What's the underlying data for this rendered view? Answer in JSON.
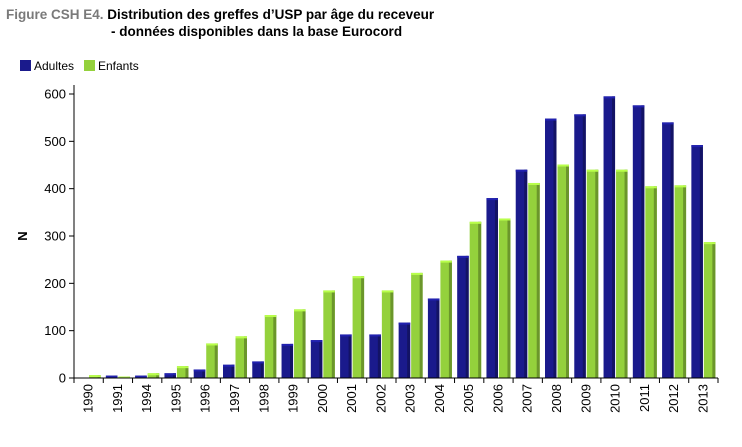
{
  "title": {
    "prefix": "Figure CSH E4.",
    "main": "Distribution des greffes d’USP par âge du receveur",
    "line2": "- données disponibles dans la base Eurocord"
  },
  "colors": {
    "adultes": "#1a1a8c",
    "enfants": "#94d13c",
    "axis": "#000000"
  },
  "chart_data": {
    "type": "bar",
    "ylabel": "N",
    "ylim": [
      0,
      620
    ],
    "yticks": [
      0,
      100,
      200,
      300,
      400,
      500,
      600
    ],
    "legend_position": "top-left",
    "categories": [
      "1990",
      "1991",
      "1994",
      "1995",
      "1996",
      "1997",
      "1998",
      "1999",
      "2000",
      "2001",
      "2002",
      "2003",
      "2004",
      "2005",
      "2006",
      "2007",
      "2008",
      "2009",
      "2010",
      "2011",
      "2012",
      "2013"
    ],
    "series": [
      {
        "name": "Adultes",
        "values": [
          0,
          5,
          5,
          10,
          18,
          28,
          35,
          72,
          80,
          92,
          92,
          117,
          168,
          258,
          380,
          440,
          548,
          557,
          595,
          576,
          540,
          492
        ]
      },
      {
        "name": "Enfants",
        "values": [
          6,
          3,
          10,
          25,
          73,
          88,
          133,
          145,
          185,
          215,
          185,
          222,
          248,
          330,
          337,
          412,
          451,
          440,
          440,
          405,
          407,
          287
        ]
      }
    ]
  }
}
